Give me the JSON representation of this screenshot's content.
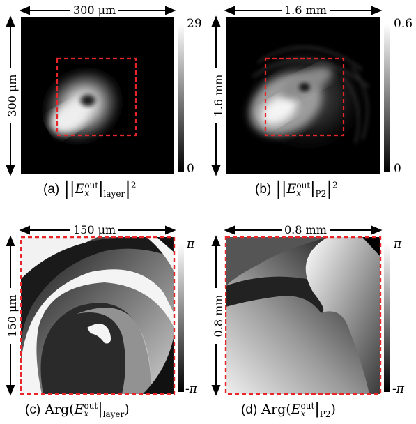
{
  "panels": {
    "a": {
      "top_dimension": "300 μm",
      "side_dimension": "300 μm",
      "colorbar_max": "29",
      "colorbar_min": "0",
      "caption_letter": "(a)",
      "caption_subscript": "layer"
    },
    "b": {
      "top_dimension": "1.6 mm",
      "side_dimension": "1.6 mm",
      "colorbar_max": "0.6",
      "colorbar_min": "0",
      "caption_letter": "(b)",
      "caption_subscript": "P2"
    },
    "c": {
      "top_dimension": "150 μm",
      "side_dimension": "150 μm",
      "colorbar_max": "π",
      "colorbar_min": "-π",
      "caption_letter": "(c)",
      "caption_subscript": "layer"
    },
    "d": {
      "top_dimension": "0.8 mm",
      "side_dimension": "0.8 mm",
      "colorbar_max": "π",
      "colorbar_min": "-π",
      "caption_letter": "(d)",
      "caption_subscript": "P2"
    }
  },
  "caption_common": {
    "field_symbol": "E",
    "field_subscript": "x",
    "field_superscript": "out",
    "arg_function": "Arg",
    "power": "2"
  },
  "colors": {
    "roi_box": "#e8262a",
    "background": "#000000"
  }
}
